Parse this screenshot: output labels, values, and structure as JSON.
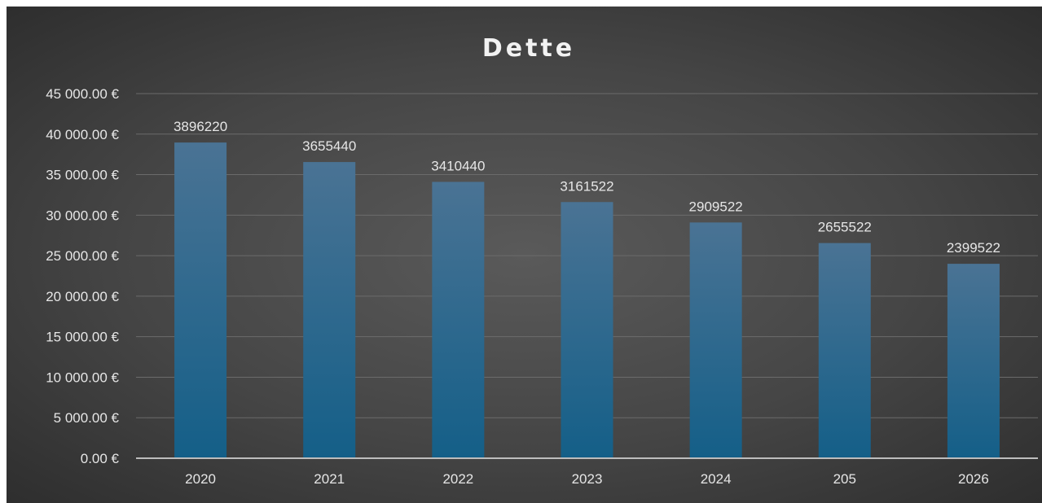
{
  "chart_data": {
    "type": "bar",
    "title": "Dette",
    "xlabel": "",
    "ylabel": "",
    "categories": [
      "2020",
      "2021",
      "2022",
      "2023",
      "2024",
      "205",
      "2026"
    ],
    "values": [
      38962.2,
      36554.4,
      34104.4,
      31615.22,
      29095.22,
      26555.22,
      23995.22
    ],
    "data_labels": [
      "3896220",
      "3655440",
      "3410440",
      "3161522",
      "2909522",
      "2655522",
      "2399522"
    ],
    "ylim": [
      0,
      45000
    ],
    "yticks": [
      0,
      5000,
      10000,
      15000,
      20000,
      25000,
      30000,
      35000,
      40000,
      45000
    ],
    "ytick_labels": [
      "0.00 €",
      "5 000.00 €",
      "10 000.00 €",
      "15 000.00 €",
      "20 000.00 €",
      "25 000.00 €",
      "30 000.00 €",
      "35 000.00 €",
      "40 000.00 €",
      "45 000.00 €"
    ],
    "grid": true,
    "legend": "none",
    "colors": {
      "bar_top": "#4a7394",
      "bar_bottom": "#145f88",
      "text": "#e6e6e6",
      "grid": "#6b6b6b",
      "axis": "#bdbdbd"
    }
  }
}
